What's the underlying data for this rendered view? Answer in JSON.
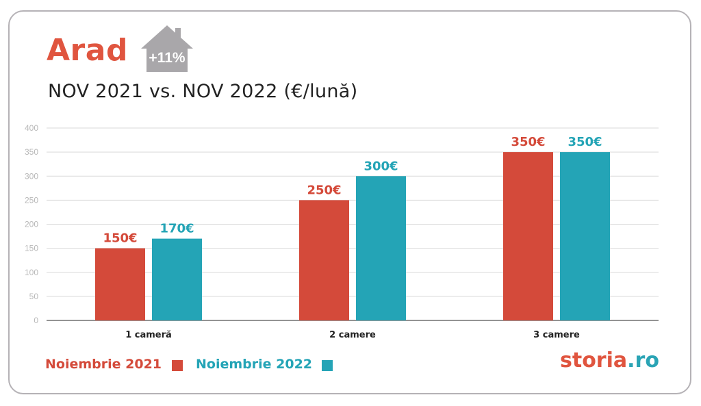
{
  "header": {
    "title": "Arad",
    "badge": "+11%",
    "subtitle": "NOV 2021 vs. NOV 2022 (€/lună)"
  },
  "legend": {
    "series1": "Noiembrie 2021",
    "series2": "Noiembrie 2022"
  },
  "brand": {
    "part1": "storia",
    "part2": ".ro"
  },
  "colors": {
    "series1": "#d44a3a",
    "series2": "#24a4b6",
    "title": "#e0553f",
    "house": "#a9a7aa"
  },
  "chart_data": {
    "type": "bar",
    "categories": [
      "1 cameră",
      "2 camere",
      "3 camere"
    ],
    "series": [
      {
        "name": "Noiembrie 2021",
        "values": [
          150,
          250,
          350
        ],
        "labels": [
          "150€",
          "250€",
          "350€"
        ]
      },
      {
        "name": "Noiembrie 2022",
        "values": [
          170,
          300,
          350
        ],
        "labels": [
          "170€",
          "300€",
          "350€"
        ]
      }
    ],
    "yticks": [
      0,
      50,
      100,
      150,
      200,
      250,
      300,
      350,
      400
    ],
    "ylim": [
      0,
      400
    ],
    "grid": true,
    "legend_position": "bottom-left"
  }
}
